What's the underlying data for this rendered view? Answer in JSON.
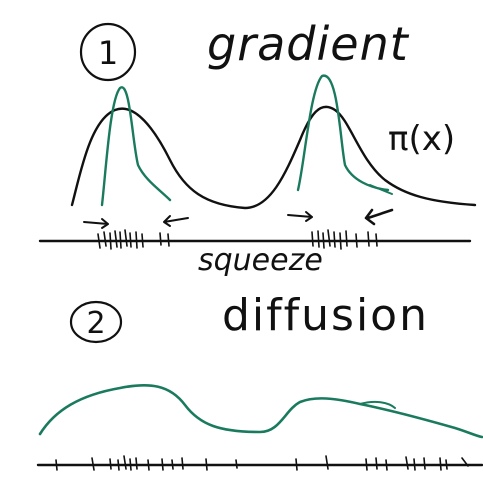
{
  "colors": {
    "ink": "#111111",
    "green": "#1a7a5e",
    "background": "#ffffff"
  },
  "step1": {
    "number": "1",
    "title": "gradient",
    "curve_label": "π(x)",
    "axis_label": "squeeze"
  },
  "step2": {
    "number": "2",
    "title": "diffusion"
  }
}
